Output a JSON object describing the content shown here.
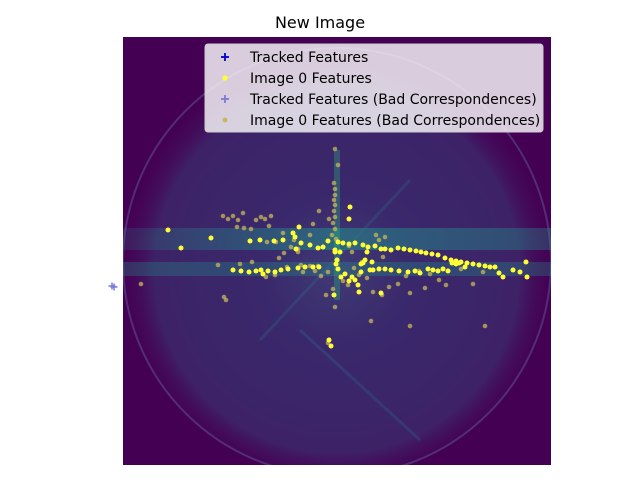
{
  "chart_data": {
    "type": "scatter",
    "title": "New Image",
    "xlabel": "",
    "ylabel": "",
    "grid": false,
    "axes_visible": false,
    "background": "sonar image (viridis colormap, circular field of view)",
    "legend_placement": "top-right",
    "xlim": [
      0,
      428
    ],
    "ylim": [
      428,
      0
    ],
    "series": [
      {
        "name": "Tracked Features",
        "marker": "plus",
        "color": "#0000cc",
        "points": []
      },
      {
        "name": "Image 0 Features",
        "marker": "dot",
        "color": "#ffff33",
        "points": [
          [
            45,
            193
          ],
          [
            58,
            211
          ],
          [
            88,
            201
          ],
          [
            127,
            204
          ],
          [
            137,
            203
          ],
          [
            151,
            204
          ],
          [
            160,
            203
          ],
          [
            172,
            200
          ],
          [
            178,
            206
          ],
          [
            187,
            208
          ],
          [
            200,
            210
          ],
          [
            205,
            204
          ],
          [
            212,
            215
          ],
          [
            215,
            205
          ],
          [
            220,
            206
          ],
          [
            226,
            207
          ],
          [
            232,
            206
          ],
          [
            240,
            208
          ],
          [
            245,
            210
          ],
          [
            252,
            209
          ],
          [
            258,
            212
          ],
          [
            262,
            212
          ],
          [
            268,
            213
          ],
          [
            275,
            211
          ],
          [
            281,
            212
          ],
          [
            287,
            213
          ],
          [
            293,
            214
          ],
          [
            298,
            215
          ],
          [
            303,
            216
          ],
          [
            309,
            217
          ],
          [
            315,
            218
          ],
          [
            322,
            221
          ],
          [
            328,
            223
          ],
          [
            333,
            224
          ],
          [
            338,
            225
          ],
          [
            344,
            226
          ],
          [
            350,
            227
          ],
          [
            356,
            228
          ],
          [
            362,
            229
          ],
          [
            367,
            230
          ],
          [
            372,
            230
          ],
          [
            376,
            236
          ],
          [
            380,
            240
          ],
          [
            390,
            233
          ],
          [
            397,
            235
          ],
          [
            403,
            225
          ],
          [
            404,
            240
          ],
          [
            110,
            233
          ],
          [
            118,
            234
          ],
          [
            126,
            235
          ],
          [
            133,
            234
          ],
          [
            138,
            233
          ],
          [
            140,
            237
          ],
          [
            145,
            234
          ],
          [
            152,
            235
          ],
          [
            158,
            233
          ],
          [
            165,
            232
          ],
          [
            175,
            231
          ],
          [
            182,
            230
          ],
          [
            190,
            230
          ],
          [
            196,
            230
          ],
          [
            215,
            232
          ],
          [
            218,
            240
          ],
          [
            222,
            237
          ],
          [
            226,
            244
          ],
          [
            229,
            240
          ],
          [
            232,
            243
          ],
          [
            236,
            255
          ],
          [
            238,
            227
          ],
          [
            240,
            226
          ],
          [
            250,
            233
          ],
          [
            256,
            232
          ],
          [
            262,
            232
          ],
          [
            268,
            233
          ],
          [
            276,
            234
          ],
          [
            285,
            235
          ],
          [
            292,
            234
          ],
          [
            297,
            236
          ],
          [
            305,
            232
          ],
          [
            310,
            233
          ],
          [
            315,
            234
          ],
          [
            320,
            232
          ],
          [
            325,
            234
          ],
          [
            329,
            226
          ],
          [
            333,
            227
          ],
          [
            336,
            226
          ],
          [
            342,
            230
          ],
          [
            244,
            215
          ],
          [
            242,
            223
          ],
          [
            227,
            170
          ],
          [
            226,
            182
          ],
          [
            211,
            258
          ],
          [
            214,
            223
          ],
          [
            170,
            196
          ],
          [
            176,
            190
          ],
          [
            173,
            212
          ],
          [
            213,
            227
          ],
          [
            258,
            256
          ],
          [
            235,
            248
          ],
          [
            238,
            235
          ],
          [
            195,
            211
          ],
          [
            208,
            309
          ],
          [
            206,
            303
          ],
          [
            212,
            213
          ],
          [
            217,
            215
          ],
          [
            247,
            233
          ],
          [
            249,
            225
          ]
        ]
      },
      {
        "name": "Tracked Features (Bad Correspondences)",
        "marker": "plus",
        "color": "#7b7bd6",
        "points": [
          [
            -11,
            249
          ],
          [
            -9,
            250
          ]
        ]
      },
      {
        "name": "Image 0 Features (Bad Correspondences)",
        "marker": "dot",
        "color": "#c8b75a",
        "points": [
          [
            212,
            112
          ],
          [
            215,
            128
          ],
          [
            211,
            146
          ],
          [
            212,
            152
          ],
          [
            212,
            158
          ],
          [
            211,
            163
          ],
          [
            212,
            168
          ],
          [
            211,
            174
          ],
          [
            212,
            180
          ],
          [
            210,
            186
          ],
          [
            212,
            192
          ],
          [
            209,
            198
          ],
          [
            213,
            202
          ],
          [
            196,
            174
          ],
          [
            206,
            182
          ],
          [
            187,
            198
          ],
          [
            175,
            212
          ],
          [
            190,
            187
          ],
          [
            100,
            179
          ],
          [
            105,
            182
          ],
          [
            110,
            179
          ],
          [
            115,
            183
          ],
          [
            120,
            176
          ],
          [
            114,
            190
          ],
          [
            121,
            191
          ],
          [
            128,
            192
          ],
          [
            133,
            183
          ],
          [
            138,
            180
          ],
          [
            142,
            182
          ],
          [
            148,
            179
          ],
          [
            146,
            189
          ],
          [
            160,
            196
          ],
          [
            171,
            203
          ],
          [
            175,
            215
          ],
          [
            168,
            210
          ],
          [
            161,
            216
          ],
          [
            156,
            221
          ],
          [
            164,
            230
          ],
          [
            178,
            228
          ],
          [
            187,
            229
          ],
          [
            192,
            234
          ],
          [
            195,
            229
          ],
          [
            198,
            239
          ],
          [
            205,
            235
          ],
          [
            210,
            252
          ],
          [
            212,
            270
          ],
          [
            220,
            244
          ],
          [
            225,
            248
          ],
          [
            231,
            231
          ],
          [
            236,
            238
          ],
          [
            244,
            241
          ],
          [
            250,
            255
          ],
          [
            259,
            258
          ],
          [
            266,
            250
          ],
          [
            275,
            247
          ],
          [
            283,
            239
          ],
          [
            296,
            234
          ],
          [
            307,
            237
          ],
          [
            316,
            243
          ],
          [
            323,
            248
          ],
          [
            338,
            232
          ],
          [
            350,
            247
          ],
          [
            360,
            235
          ],
          [
            302,
            251
          ],
          [
            287,
            256
          ],
          [
            260,
            220
          ],
          [
            18,
            247
          ],
          [
            95,
            228
          ],
          [
            101,
            260
          ],
          [
            103,
            263
          ],
          [
            180,
            235
          ],
          [
            226,
            209
          ],
          [
            229,
            215
          ],
          [
            239,
            225
          ],
          [
            248,
            284
          ],
          [
            287,
            289
          ],
          [
            362,
            289
          ],
          [
            205,
            306
          ],
          [
            203,
            258
          ],
          [
            262,
            200
          ],
          [
            256,
            203
          ],
          [
            253,
            198
          ],
          [
            153,
            205
          ],
          [
            144,
            205
          ],
          [
            117,
            227
          ],
          [
            129,
            225
          ],
          [
            143,
            240
          ],
          [
            152,
            238
          ]
        ]
      }
    ]
  }
}
